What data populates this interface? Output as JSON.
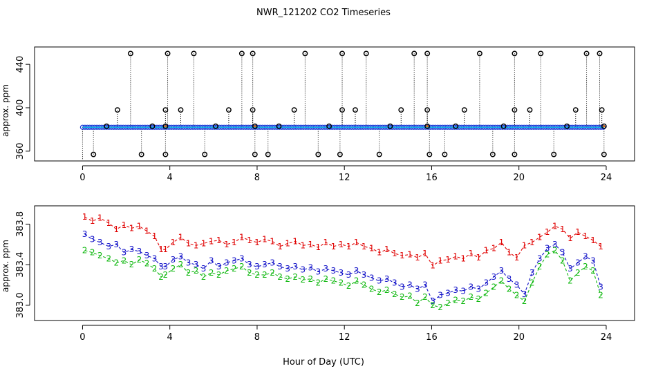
{
  "chart_data": [
    {
      "type": "scatter",
      "title": "NWR_121202  CO2 Timeseries",
      "xlabel": "",
      "ylabel": "approx. ppm",
      "xlim": [
        -2.2,
        25.3
      ],
      "ylim": [
        351,
        456
      ],
      "xticks": [
        0,
        4,
        8,
        12,
        16,
        20,
        24
      ],
      "yticks": [
        360,
        400,
        440
      ],
      "baseline": 382,
      "colors": {
        "baseline_points": "#1f3fd8",
        "baseline_line": "#00b8e6",
        "spike_markers": "#000000",
        "spike_lines": "#000000",
        "orange_markers": "#e07000"
      },
      "spikes_high": [
        [
          2.2,
          450
        ],
        [
          3.9,
          450
        ],
        [
          5.1,
          450
        ],
        [
          7.3,
          450
        ],
        [
          7.8,
          450
        ],
        [
          10.2,
          450
        ],
        [
          11.9,
          450
        ],
        [
          13.0,
          450
        ],
        [
          15.2,
          450
        ],
        [
          15.8,
          450
        ],
        [
          18.2,
          450
        ],
        [
          19.8,
          450
        ],
        [
          21.0,
          450
        ],
        [
          23.1,
          450
        ],
        [
          23.7,
          450
        ]
      ],
      "spikes_mid": [
        [
          1.6,
          398
        ],
        [
          3.8,
          398
        ],
        [
          4.5,
          398
        ],
        [
          6.7,
          398
        ],
        [
          7.8,
          398
        ],
        [
          9.7,
          398
        ],
        [
          11.9,
          398
        ],
        [
          12.5,
          398
        ],
        [
          14.6,
          398
        ],
        [
          15.8,
          398
        ],
        [
          17.5,
          398
        ],
        [
          19.8,
          398
        ],
        [
          20.5,
          398
        ],
        [
          22.6,
          398
        ],
        [
          23.8,
          398
        ]
      ],
      "spikes_low": [
        [
          0.5,
          357
        ],
        [
          2.7,
          357
        ],
        [
          3.8,
          357
        ],
        [
          5.6,
          357
        ],
        [
          7.9,
          357
        ],
        [
          8.5,
          357
        ],
        [
          10.8,
          357
        ],
        [
          11.8,
          357
        ],
        [
          13.6,
          357
        ],
        [
          15.9,
          357
        ],
        [
          16.6,
          357
        ],
        [
          18.8,
          357
        ],
        [
          19.8,
          357
        ],
        [
          21.6,
          357
        ],
        [
          23.9,
          357
        ]
      ],
      "spikes_near": [
        [
          1.1,
          383
        ],
        [
          3.2,
          383
        ],
        [
          6.1,
          383
        ],
        [
          9.0,
          383
        ],
        [
          11.3,
          383
        ],
        [
          14.1,
          383
        ],
        [
          17.1,
          383
        ],
        [
          19.3,
          383
        ],
        [
          22.2,
          383
        ]
      ],
      "orange_markers": [
        [
          3.8,
          383
        ],
        [
          7.9,
          383
        ],
        [
          15.8,
          383
        ],
        [
          23.9,
          383
        ]
      ]
    },
    {
      "type": "line",
      "title": "",
      "xlabel": "Hour of Day (UTC)",
      "ylabel": "approx. ppm",
      "xlim": [
        -2.2,
        25.3
      ],
      "ylim": [
        382.85,
        383.98
      ],
      "xticks": [
        0,
        4,
        8,
        12,
        16,
        20,
        24
      ],
      "yticks": [
        383.0,
        383.4,
        383.8
      ],
      "series": [
        {
          "name": "1",
          "color": "#e00000",
          "x": [
            0.1,
            0.45,
            0.8,
            1.2,
            1.55,
            1.9,
            2.25,
            2.6,
            2.95,
            3.3,
            3.6,
            3.8,
            4.15,
            4.5,
            4.85,
            5.2,
            5.55,
            5.9,
            6.25,
            6.6,
            6.95,
            7.3,
            7.65,
            8.0,
            8.35,
            8.7,
            9.05,
            9.4,
            9.75,
            10.1,
            10.45,
            10.8,
            11.15,
            11.5,
            11.85,
            12.2,
            12.55,
            12.9,
            13.25,
            13.6,
            13.95,
            14.3,
            14.65,
            15.0,
            15.35,
            15.7,
            16.05,
            16.4,
            16.75,
            17.1,
            17.45,
            17.8,
            18.15,
            18.5,
            18.85,
            19.2,
            19.55,
            19.9,
            20.25,
            20.6,
            20.95,
            21.3,
            21.65,
            22.0,
            22.35,
            22.7,
            23.05,
            23.4,
            23.75
          ],
          "values": [
            383.87,
            383.83,
            383.86,
            383.81,
            383.75,
            383.79,
            383.76,
            383.78,
            383.73,
            383.68,
            383.55,
            383.55,
            383.62,
            383.67,
            383.61,
            383.59,
            383.61,
            383.63,
            383.64,
            383.6,
            383.62,
            383.67,
            383.64,
            383.62,
            383.65,
            383.63,
            383.58,
            383.61,
            383.63,
            383.59,
            383.6,
            383.57,
            383.62,
            383.58,
            383.6,
            383.58,
            383.62,
            383.58,
            383.56,
            383.52,
            383.55,
            383.51,
            383.49,
            383.5,
            383.47,
            383.51,
            383.39,
            383.44,
            383.45,
            383.48,
            383.46,
            383.51,
            383.47,
            383.54,
            383.56,
            383.62,
            383.52,
            383.47,
            383.59,
            383.62,
            383.67,
            383.72,
            383.78,
            383.75,
            383.66,
            383.72,
            383.68,
            383.64,
            383.58
          ]
        },
        {
          "name": "3",
          "color": "#1010c8",
          "x": [
            0.1,
            0.45,
            0.8,
            1.2,
            1.55,
            1.9,
            2.25,
            2.6,
            2.95,
            3.3,
            3.6,
            3.8,
            4.15,
            4.5,
            4.85,
            5.2,
            5.55,
            5.9,
            6.25,
            6.6,
            6.95,
            7.3,
            7.65,
            8.0,
            8.35,
            8.7,
            9.05,
            9.4,
            9.75,
            10.1,
            10.45,
            10.8,
            11.15,
            11.5,
            11.85,
            12.2,
            12.55,
            12.9,
            13.25,
            13.6,
            13.95,
            14.3,
            14.65,
            15.0,
            15.35,
            15.7,
            16.05,
            16.4,
            16.75,
            17.1,
            17.45,
            17.8,
            18.15,
            18.5,
            18.85,
            19.2,
            19.55,
            19.9,
            20.25,
            20.6,
            20.95,
            21.3,
            21.65,
            22.0,
            22.35,
            22.7,
            23.05,
            23.4,
            23.75
          ],
          "values": [
            383.7,
            383.65,
            383.62,
            383.58,
            383.6,
            383.52,
            383.55,
            383.53,
            383.49,
            383.46,
            383.38,
            383.38,
            383.45,
            383.48,
            383.42,
            383.4,
            383.36,
            383.44,
            383.38,
            383.42,
            383.44,
            383.46,
            383.4,
            383.38,
            383.4,
            383.42,
            383.38,
            383.36,
            383.38,
            383.35,
            383.37,
            383.33,
            383.36,
            383.34,
            383.32,
            383.3,
            383.34,
            383.3,
            383.27,
            383.24,
            383.26,
            383.22,
            383.18,
            383.2,
            383.16,
            383.2,
            383.04,
            383.1,
            383.12,
            383.15,
            383.14,
            383.18,
            383.16,
            383.22,
            383.28,
            383.34,
            383.26,
            383.2,
            383.11,
            383.32,
            383.46,
            383.56,
            383.6,
            383.52,
            383.36,
            383.42,
            383.48,
            383.44,
            383.18
          ]
        },
        {
          "name": "2",
          "color": "#10b810",
          "x": [
            0.1,
            0.45,
            0.8,
            1.2,
            1.55,
            1.9,
            2.25,
            2.6,
            2.95,
            3.3,
            3.6,
            3.8,
            4.15,
            4.5,
            4.85,
            5.2,
            5.55,
            5.9,
            6.25,
            6.6,
            6.95,
            7.3,
            7.65,
            8.0,
            8.35,
            8.7,
            9.05,
            9.4,
            9.75,
            10.1,
            10.45,
            10.8,
            11.15,
            11.5,
            11.85,
            12.2,
            12.55,
            12.9,
            13.25,
            13.6,
            13.95,
            14.3,
            14.65,
            15.0,
            15.35,
            15.7,
            16.05,
            16.4,
            16.75,
            17.1,
            17.45,
            17.8,
            18.15,
            18.5,
            18.85,
            19.2,
            19.55,
            19.9,
            20.25,
            20.6,
            20.95,
            21.3,
            21.65,
            22.0,
            22.35,
            22.7,
            23.05,
            23.4,
            23.75
          ],
          "values": [
            383.54,
            383.52,
            383.49,
            383.46,
            383.42,
            383.44,
            383.4,
            383.45,
            383.41,
            383.36,
            383.28,
            383.3,
            383.36,
            383.4,
            383.32,
            383.34,
            383.28,
            383.32,
            383.3,
            383.34,
            383.36,
            383.38,
            383.32,
            383.3,
            383.3,
            383.32,
            383.28,
            383.26,
            383.28,
            383.25,
            383.26,
            383.22,
            383.26,
            383.24,
            383.22,
            383.19,
            383.24,
            383.2,
            383.16,
            383.13,
            383.15,
            383.11,
            383.08,
            383.09,
            383.02,
            383.08,
            383.0,
            382.98,
            383.02,
            383.05,
            383.04,
            383.08,
            383.06,
            383.12,
            383.18,
            383.24,
            383.16,
            383.1,
            383.04,
            383.22,
            383.38,
            383.5,
            383.54,
            383.44,
            383.24,
            383.32,
            383.38,
            383.34,
            383.1
          ]
        }
      ]
    }
  ]
}
